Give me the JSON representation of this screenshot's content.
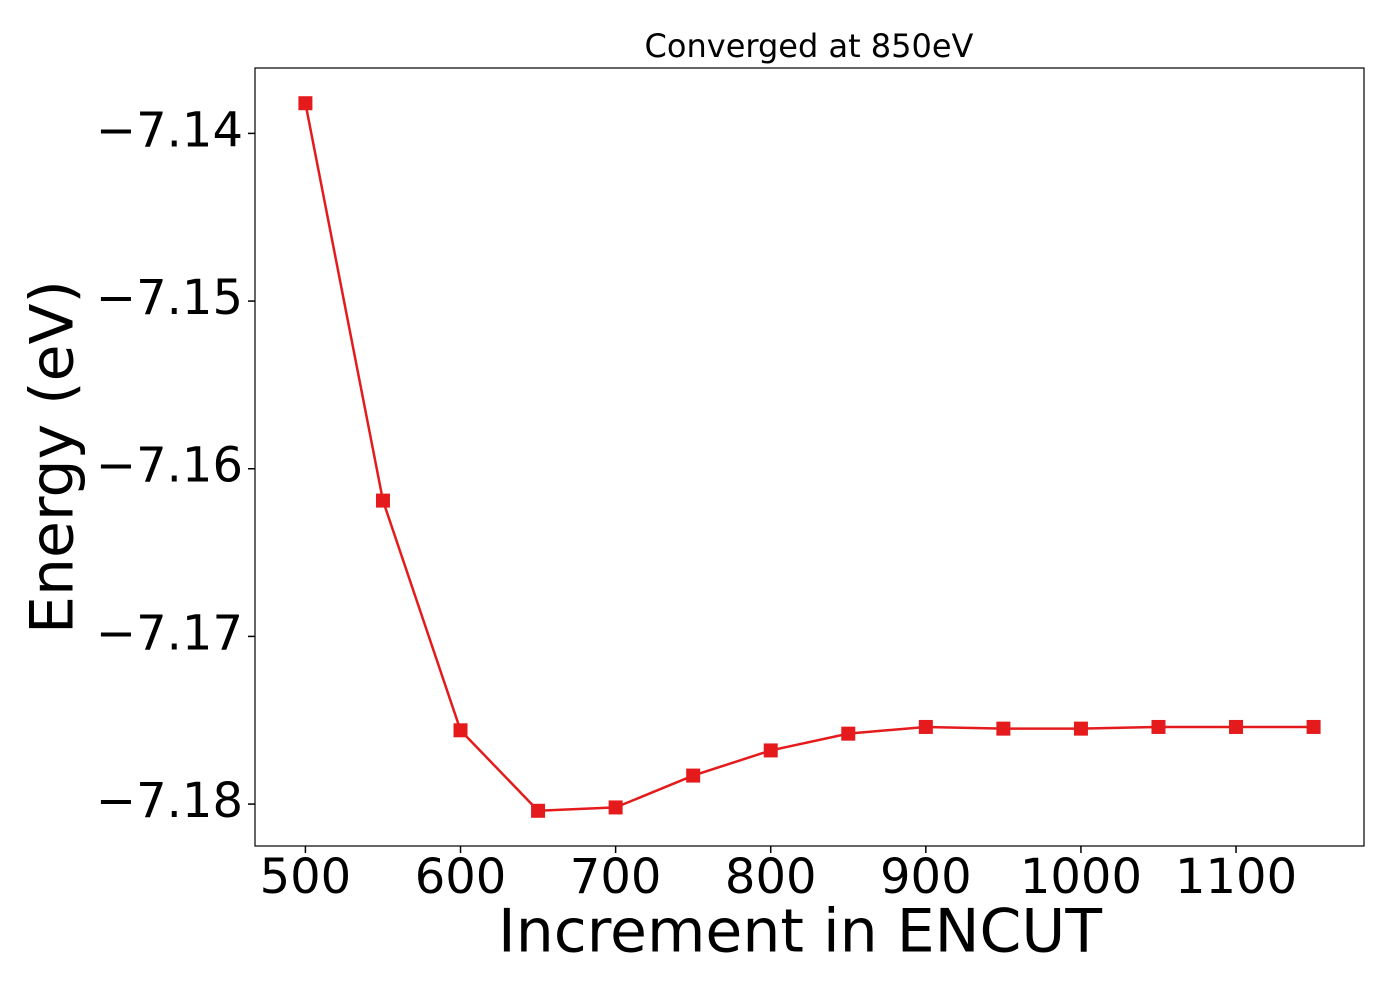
{
  "chart_data": {
    "type": "line",
    "title": "Converged at 850eV",
    "xlabel": "Increment in ENCUT",
    "ylabel": "Energy (eV)",
    "x": [
      500,
      550,
      600,
      650,
      700,
      750,
      800,
      850,
      900,
      950,
      1000,
      1050,
      1100,
      1150
    ],
    "series": [
      {
        "color": "#e41a1c",
        "marker": "square",
        "values": [
          -7.1382,
          -7.1619,
          -7.1756,
          -7.1804,
          -7.1802,
          -7.1783,
          -7.1768,
          -7.1758,
          -7.1754,
          -7.1755,
          -7.1755,
          -7.1754,
          -7.1754,
          -7.1754
        ]
      }
    ],
    "xlim": [
      467.5,
      1182.5
    ],
    "xticks": [
      500,
      600,
      700,
      800,
      900,
      1000,
      1100
    ],
    "ylim": [
      -7.1825,
      -7.1361
    ],
    "yticks": [
      {
        "value": -7.18,
        "label": "−7.18"
      },
      {
        "value": -7.17,
        "label": "−7.17"
      },
      {
        "value": -7.16,
        "label": "−7.16"
      },
      {
        "value": -7.15,
        "label": "−7.15"
      },
      {
        "value": -7.14,
        "label": "−7.14"
      }
    ],
    "grid": false
  }
}
